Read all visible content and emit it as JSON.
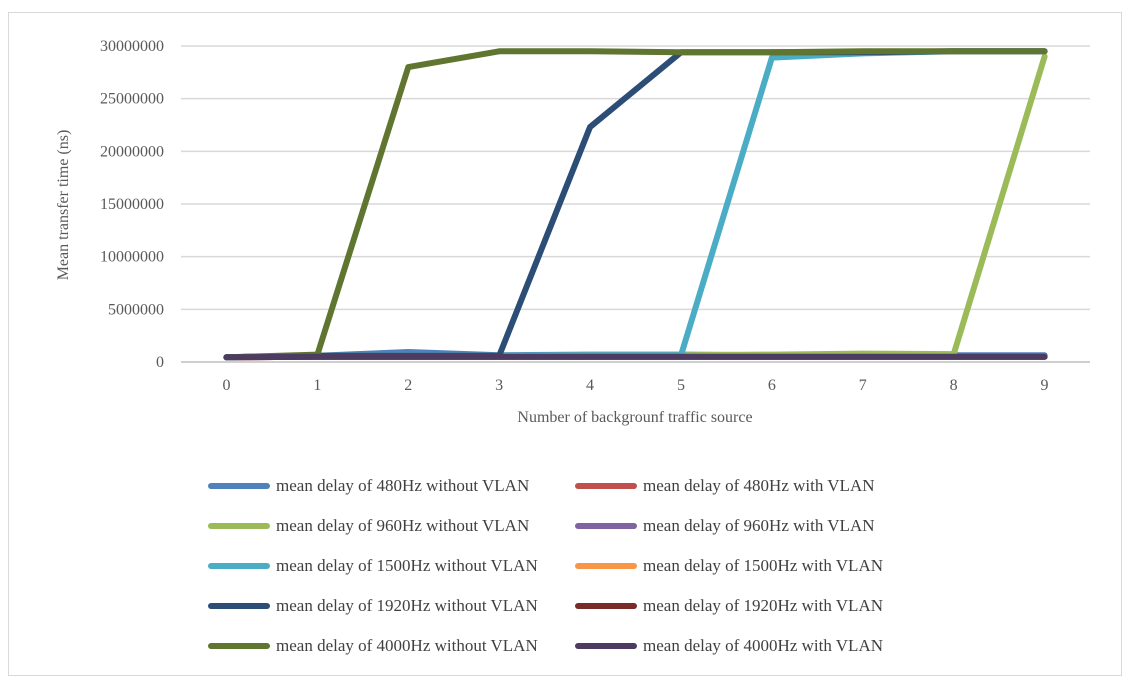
{
  "chart_data": {
    "type": "line",
    "title": "",
    "xlabel": "Number of backgrounf traffic source",
    "ylabel": "Mean transfer time (ns)",
    "x": [
      0,
      1,
      2,
      3,
      4,
      5,
      6,
      7,
      8,
      9
    ],
    "ylim": [
      0,
      30000000
    ],
    "yticks": [
      "0",
      "5000000",
      "10000000",
      "15000000",
      "20000000",
      "25000000",
      "30000000"
    ],
    "ytick_values": [
      0,
      5000000,
      10000000,
      15000000,
      20000000,
      25000000,
      30000000
    ],
    "grid": true,
    "legend_position": "bottom",
    "series": [
      {
        "name": "mean delay of 480Hz without VLAN",
        "color": "#4f81bd",
        "values": [
          450000,
          600000,
          950000,
          650000,
          700000,
          700000,
          650000,
          650000,
          650000,
          650000
        ]
      },
      {
        "name": "mean delay of 480Hz with VLAN",
        "color": "#c0504d",
        "values": [
          450000,
          500000,
          500000,
          500000,
          500000,
          500000,
          500000,
          500000,
          500000,
          500000
        ]
      },
      {
        "name": "mean delay of 960Hz without VLAN",
        "color": "#9bbb59",
        "values": [
          450000,
          600000,
          600000,
          600000,
          650000,
          650000,
          700000,
          800000,
          750000,
          29000000
        ]
      },
      {
        "name": "mean delay of 960Hz with VLAN",
        "color": "#8064a2",
        "values": [
          450000,
          500000,
          500000,
          500000,
          500000,
          500000,
          500000,
          500000,
          500000,
          500000
        ]
      },
      {
        "name": "mean delay of 1500Hz without VLAN",
        "color": "#4bacc6",
        "values": [
          450000,
          600000,
          600000,
          600000,
          650000,
          650000,
          28900000,
          29300000,
          29500000,
          29500000
        ]
      },
      {
        "name": "mean delay of 1500Hz with VLAN",
        "color": "#f79646",
        "values": [
          450000,
          500000,
          500000,
          500000,
          500000,
          500000,
          500000,
          500000,
          500000,
          500000
        ]
      },
      {
        "name": "mean delay of 1920Hz without VLAN",
        "color": "#2c4d75",
        "values": [
          450000,
          600000,
          600000,
          600000,
          22300000,
          29400000,
          29400000,
          29400000,
          29500000,
          29500000
        ]
      },
      {
        "name": "mean delay of 1920Hz with VLAN",
        "color": "#772c2a",
        "values": [
          450000,
          500000,
          500000,
          500000,
          500000,
          500000,
          500000,
          500000,
          500000,
          500000
        ]
      },
      {
        "name": "mean delay of 4000Hz without VLAN",
        "color": "#5f7530",
        "values": [
          450000,
          700000,
          28000000,
          29500000,
          29500000,
          29400000,
          29400000,
          29500000,
          29500000,
          29500000
        ]
      },
      {
        "name": "mean delay of 4000Hz with VLAN",
        "color": "#4d3b62",
        "values": [
          450000,
          500000,
          500000,
          500000,
          500000,
          500000,
          500000,
          500000,
          500000,
          500000
        ]
      }
    ]
  }
}
